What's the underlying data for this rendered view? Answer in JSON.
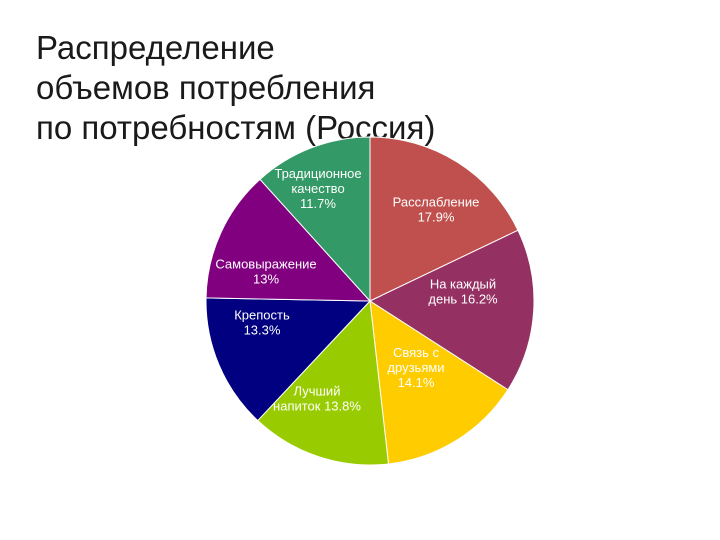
{
  "title_lines": [
    "Распределение",
    "объемов потребления",
    "по потребностям (Россия)"
  ],
  "chart_data": {
    "type": "pie",
    "title": "Распределение объемов потребления по потребностям (Россия)",
    "slices": [
      {
        "label_lines": [
          "Расслабление",
          "17.9%"
        ],
        "value": 17.9,
        "color": "#c0504d"
      },
      {
        "label_lines": [
          "На каждый",
          "день 16.2%"
        ],
        "value": 16.2,
        "color": "#953062"
      },
      {
        "label_lines": [
          "Связь с",
          "друзьями",
          "14.1%"
        ],
        "value": 14.1,
        "color": "#ffcc00"
      },
      {
        "label_lines": [
          "Лучший",
          "напиток 13.8%"
        ],
        "value": 13.8,
        "color": "#99cc00"
      },
      {
        "label_lines": [
          "Крепость",
          "13.3%"
        ],
        "value": 13.3,
        "color": "#000080"
      },
      {
        "label_lines": [
          "Самовыражение",
          "13%"
        ],
        "value": 13.0,
        "color": "#800080"
      },
      {
        "label_lines": [
          "Традиционное",
          "качество",
          "11.7%"
        ],
        "value": 11.7,
        "color": "#339966"
      }
    ]
  }
}
